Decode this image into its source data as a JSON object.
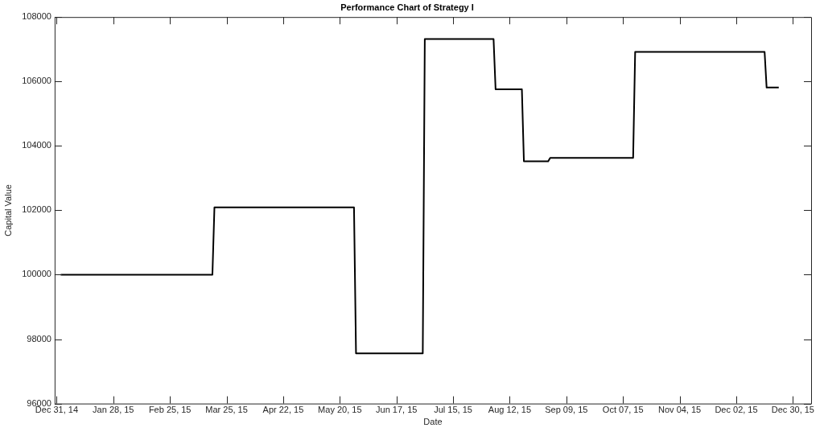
{
  "chart_data": {
    "type": "line",
    "title": "Performance Chart of Strategy I",
    "xlabel": "Date",
    "ylabel": "Capital Value",
    "x": [
      "2015-01-02",
      "2015-03-18",
      "2015-03-19",
      "2015-05-27",
      "2015-05-28",
      "2015-06-30",
      "2015-07-01",
      "2015-08-04",
      "2015-08-05",
      "2015-08-18",
      "2015-08-19",
      "2015-08-31",
      "2015-09-01",
      "2015-10-12",
      "2015-10-13",
      "2015-12-16",
      "2015-12-17",
      "2015-12-23"
    ],
    "series": [
      {
        "color": "#000000",
        "values": [
          100000,
          100000,
          102090,
          102090,
          97560,
          97560,
          107320,
          107320,
          105760,
          105760,
          103520,
          103520,
          103630,
          103630,
          106920,
          106920,
          105810,
          105810
        ]
      }
    ],
    "xlim": [
      "2014-12-30",
      "2016-01-08"
    ],
    "xticks": [
      {
        "value": "2014-12-31",
        "label": "Dec 31, 14"
      },
      {
        "value": "2015-01-28",
        "label": "Jan 28, 15"
      },
      {
        "value": "2015-02-25",
        "label": "Feb 25, 15"
      },
      {
        "value": "2015-03-25",
        "label": "Mar 25, 15"
      },
      {
        "value": "2015-04-22",
        "label": "Apr 22, 15"
      },
      {
        "value": "2015-05-20",
        "label": "May 20, 15"
      },
      {
        "value": "2015-06-17",
        "label": "Jun 17, 15"
      },
      {
        "value": "2015-07-15",
        "label": "Jul 15, 15"
      },
      {
        "value": "2015-08-12",
        "label": "Aug 12, 15"
      },
      {
        "value": "2015-09-09",
        "label": "Sep 09, 15"
      },
      {
        "value": "2015-10-07",
        "label": "Oct 07, 15"
      },
      {
        "value": "2015-11-04",
        "label": "Nov 04, 15"
      },
      {
        "value": "2015-12-02",
        "label": "Dec 02, 15"
      },
      {
        "value": "2015-12-30",
        "label": "Dec 30, 15"
      }
    ],
    "ylim": [
      96000,
      108000
    ],
    "yticks": [
      96000,
      98000,
      100000,
      102000,
      104000,
      106000,
      108000
    ],
    "marker": "none",
    "line_style": "solid"
  }
}
